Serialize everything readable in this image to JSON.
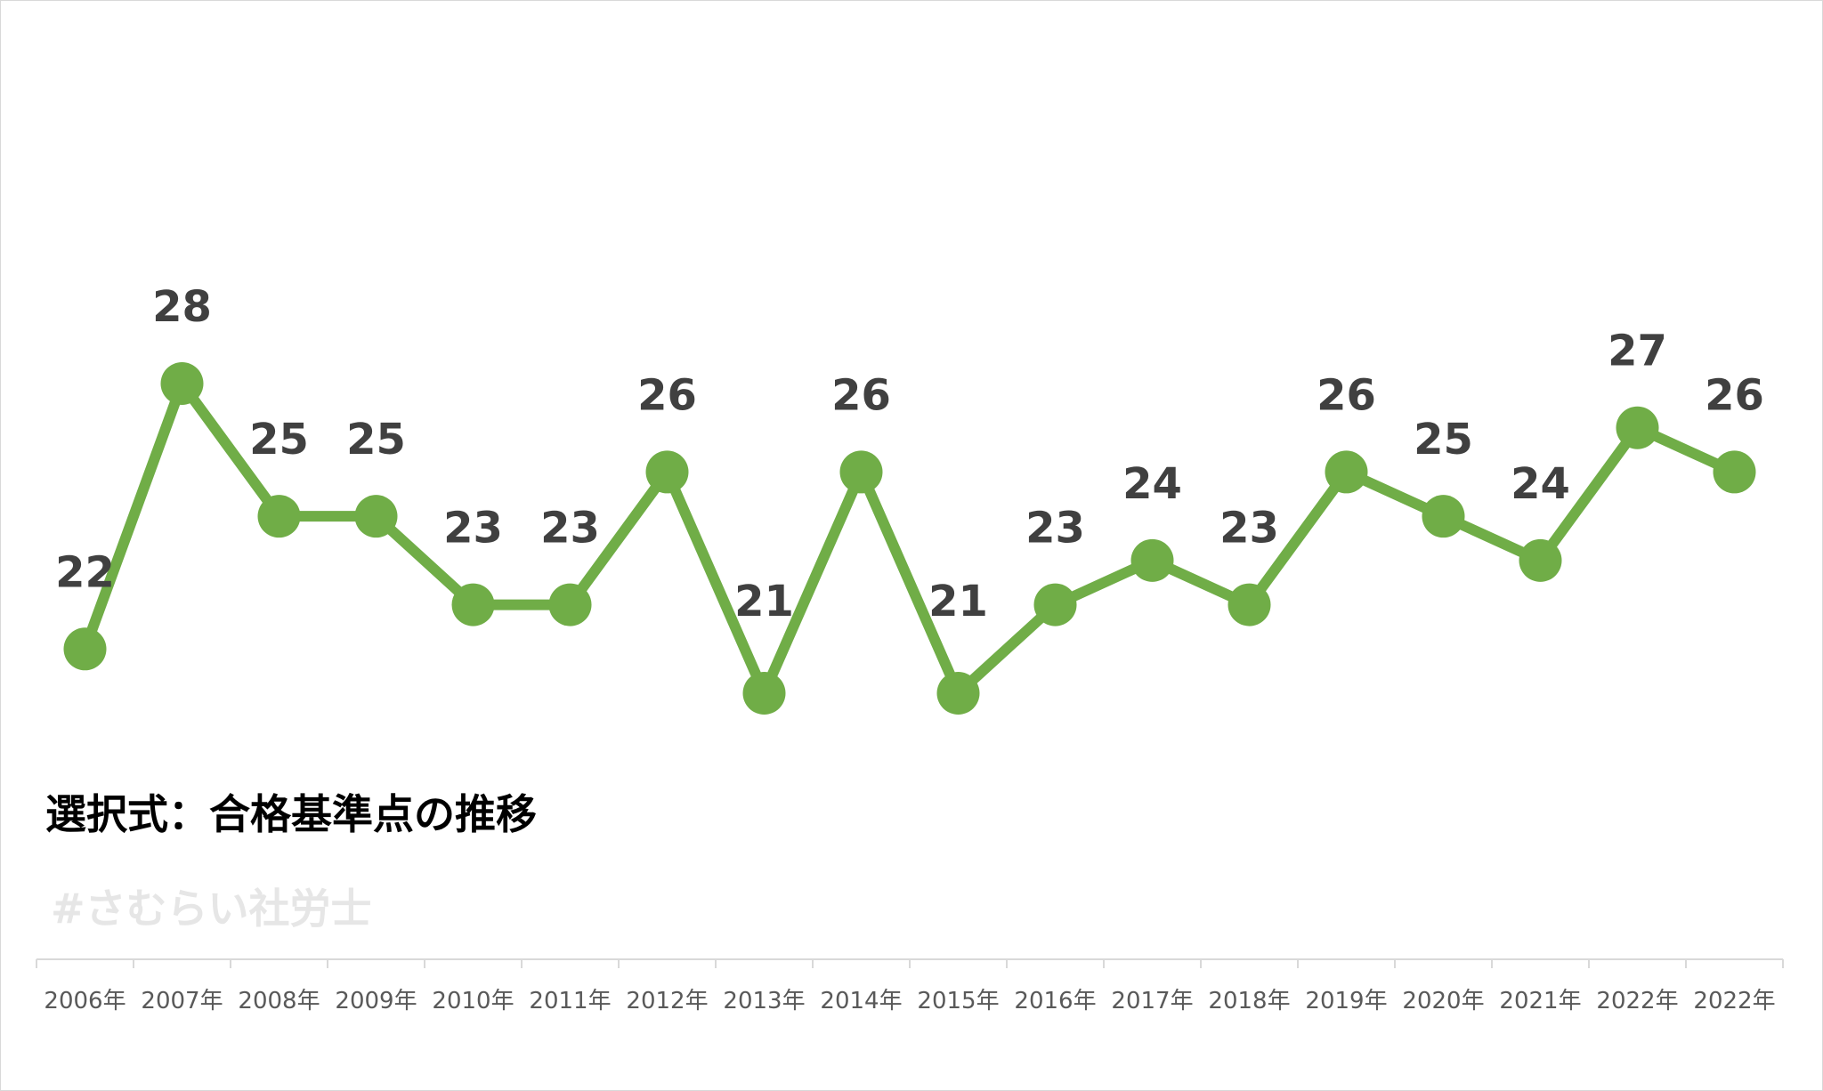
{
  "chart_data": {
    "type": "line",
    "title": "選択式：合格基準点の推移",
    "watermark": "#さむらいい社労士",
    "categories": [
      "2006年",
      "2007年",
      "2008年",
      "2009年",
      "2010年",
      "2011年",
      "2012年",
      "2013年",
      "2014年",
      "2015年",
      "2016年",
      "2017年",
      "2018年",
      "2019年",
      "2020年",
      "2021年",
      "2022年",
      "2022年"
    ],
    "series": [
      {
        "name": "合格基準点",
        "values": [
          22,
          28,
          25,
          25,
          23,
          23,
          26,
          21,
          26,
          21,
          23,
          24,
          23,
          26,
          25,
          24,
          27,
          26
        ]
      }
    ],
    "ylim": [
      21,
      28
    ],
    "grid": false,
    "legend": "none",
    "colors": {
      "line": "#70AD47",
      "label": "#404040",
      "axis": "#d9d9d9",
      "tick_label": "#595959"
    }
  }
}
